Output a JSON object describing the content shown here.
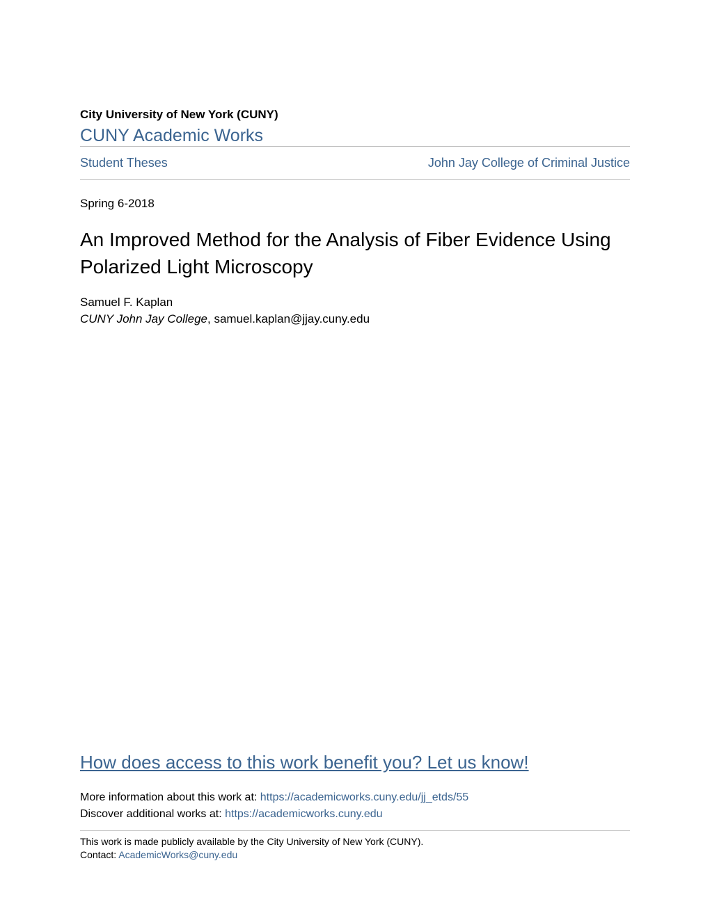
{
  "header": {
    "university": "City University of New York (CUNY)",
    "repository": "CUNY Academic Works"
  },
  "nav": {
    "left_link": "Student Theses",
    "right_link": "John Jay College of Criminal Justice"
  },
  "date": "Spring 6-2018",
  "title": "An Improved Method for the Analysis of Fiber Evidence Using Polarized Light Microscopy",
  "author": {
    "name": "Samuel F. Kaplan",
    "affiliation": "CUNY John Jay College",
    "email": "samuel.kaplan@jjay.cuny.edu"
  },
  "benefit_link": "How does access to this work benefit you? Let us know!",
  "info": {
    "more_info_label": "More information about this work at: ",
    "more_info_url": "https://academicworks.cuny.edu/jj_etds/55",
    "discover_label": "Discover additional works at: ",
    "discover_url": "https://academicworks.cuny.edu"
  },
  "footer": {
    "availability": "This work is made publicly available by the City University of New York (CUNY).",
    "contact_label": "Contact: ",
    "contact_email": "AcademicWorks@cuny.edu"
  },
  "colors": {
    "link_color": "#3b6490",
    "text_color": "#000000",
    "divider_color": "#bfbfbf",
    "background": "#ffffff"
  },
  "typography": {
    "university_fontsize": 17,
    "repository_fontsize": 25,
    "nav_fontsize": 18,
    "title_fontsize": 28,
    "body_fontsize": 17,
    "benefit_fontsize": 26,
    "info_fontsize": 16,
    "footer_fontsize": 14
  }
}
